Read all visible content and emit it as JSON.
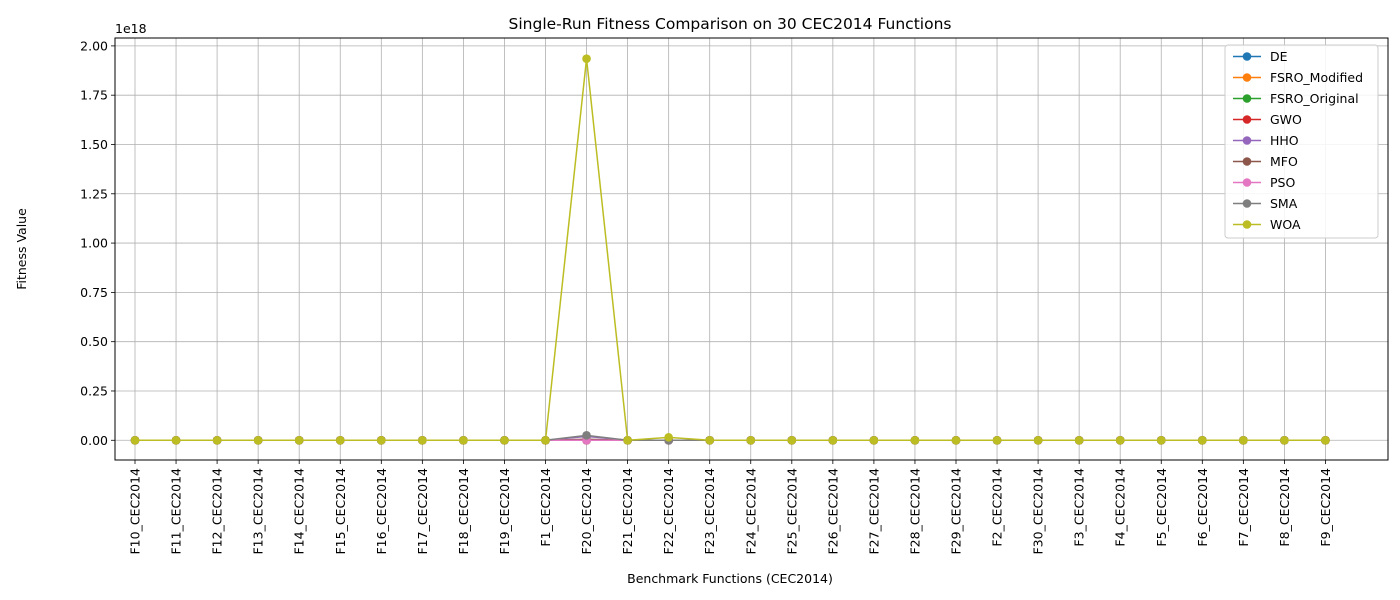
{
  "chart_data": {
    "type": "line",
    "title": "Single-Run Fitness Comparison on 30 CEC2014 Functions",
    "xlabel": "Benchmark Functions (CEC2014)",
    "ylabel": "Fitness Value",
    "y_offset_label": "1e18",
    "ylim": [
      -0.1,
      2.04
    ],
    "yticks": [
      0.0,
      0.25,
      0.5,
      0.75,
      1.0,
      1.25,
      1.5,
      1.75,
      2.0
    ],
    "ytick_labels": [
      "0.00",
      "0.25",
      "0.50",
      "0.75",
      "1.00",
      "1.25",
      "1.50",
      "1.75",
      "2.00"
    ],
    "grid": true,
    "legend_position": "top-right",
    "categories": [
      "F10_CEC2014",
      "F11_CEC2014",
      "F12_CEC2014",
      "F13_CEC2014",
      "F14_CEC2014",
      "F15_CEC2014",
      "F16_CEC2014",
      "F17_CEC2014",
      "F18_CEC2014",
      "F19_CEC2014",
      "F1_CEC2014",
      "F20_CEC2014",
      "F21_CEC2014",
      "F22_CEC2014",
      "F23_CEC2014",
      "F24_CEC2014",
      "F25_CEC2014",
      "F26_CEC2014",
      "F27_CEC2014",
      "F28_CEC2014",
      "F29_CEC2014",
      "F2_CEC2014",
      "F30_CEC2014",
      "F3_CEC2014",
      "F4_CEC2014",
      "F5_CEC2014",
      "F6_CEC2014",
      "F7_CEC2014",
      "F8_CEC2014",
      "F9_CEC2014"
    ],
    "series": [
      {
        "name": "DE",
        "color": "#1f77b4",
        "values": [
          0,
          0,
          0,
          0,
          0,
          0,
          0,
          0,
          0,
          0,
          0,
          0,
          0,
          0,
          0,
          0,
          0,
          0,
          0,
          0,
          0,
          0,
          0,
          0,
          0,
          0,
          0,
          0,
          0,
          0
        ]
      },
      {
        "name": "FSRO_Modified",
        "color": "#ff7f0e",
        "values": [
          0,
          0,
          0,
          0,
          0,
          0,
          0,
          0,
          0,
          0,
          0,
          0,
          0,
          0,
          0,
          0,
          0,
          0,
          0,
          0,
          0,
          0,
          0,
          0,
          0,
          0,
          0,
          0,
          0,
          0
        ]
      },
      {
        "name": "FSRO_Original",
        "color": "#2ca02c",
        "values": [
          0,
          0,
          0,
          0,
          0,
          0,
          0,
          0,
          0,
          0,
          0,
          0,
          0,
          0,
          0,
          0,
          0,
          0,
          0,
          0,
          0,
          0,
          0,
          0,
          0,
          0,
          0,
          0,
          0,
          0
        ]
      },
      {
        "name": "GWO",
        "color": "#d62728",
        "values": [
          0,
          0,
          0,
          0,
          0,
          0,
          0,
          0,
          0,
          0,
          0,
          0,
          0,
          0,
          0,
          0,
          0,
          0,
          0,
          0,
          0,
          0,
          0,
          0,
          0,
          0,
          0,
          0,
          0,
          0
        ]
      },
      {
        "name": "HHO",
        "color": "#9467bd",
        "values": [
          0,
          0,
          0,
          0,
          0,
          0,
          0,
          0,
          0,
          0,
          0,
          0.02,
          0,
          0,
          0,
          0,
          0,
          0,
          0,
          0,
          0,
          0,
          0,
          0,
          0,
          0,
          0,
          0,
          0,
          0
        ]
      },
      {
        "name": "MFO",
        "color": "#8c564b",
        "values": [
          0,
          0,
          0,
          0,
          0,
          0,
          0,
          0,
          0,
          0,
          0,
          0.005,
          0,
          0,
          0,
          0,
          0,
          0,
          0,
          0,
          0,
          0,
          0,
          0,
          0,
          0,
          0,
          0,
          0,
          0
        ]
      },
      {
        "name": "PSO",
        "color": "#e377c2",
        "values": [
          0,
          0,
          0,
          0,
          0,
          0,
          0,
          0,
          0,
          0,
          0,
          0,
          0,
          0,
          0,
          0,
          0,
          0,
          0,
          0,
          0,
          0,
          0,
          0,
          0,
          0,
          0,
          0,
          0,
          0
        ]
      },
      {
        "name": "SMA",
        "color": "#7f7f7f",
        "values": [
          0,
          0,
          0,
          0,
          0,
          0,
          0,
          0,
          0,
          0,
          0,
          0.025,
          0,
          0,
          0,
          0,
          0,
          0,
          0,
          0,
          0,
          0,
          0,
          0,
          0,
          0,
          0,
          0,
          0,
          0
        ]
      },
      {
        "name": "WOA",
        "color": "#bcbd22",
        "values": [
          0,
          0,
          0,
          0,
          0,
          0,
          0,
          0,
          0,
          0,
          0,
          1.935,
          0,
          0.015,
          0,
          0,
          0,
          0,
          0,
          0,
          0,
          0,
          0,
          0,
          0,
          0,
          0,
          0,
          0,
          0
        ]
      }
    ]
  }
}
